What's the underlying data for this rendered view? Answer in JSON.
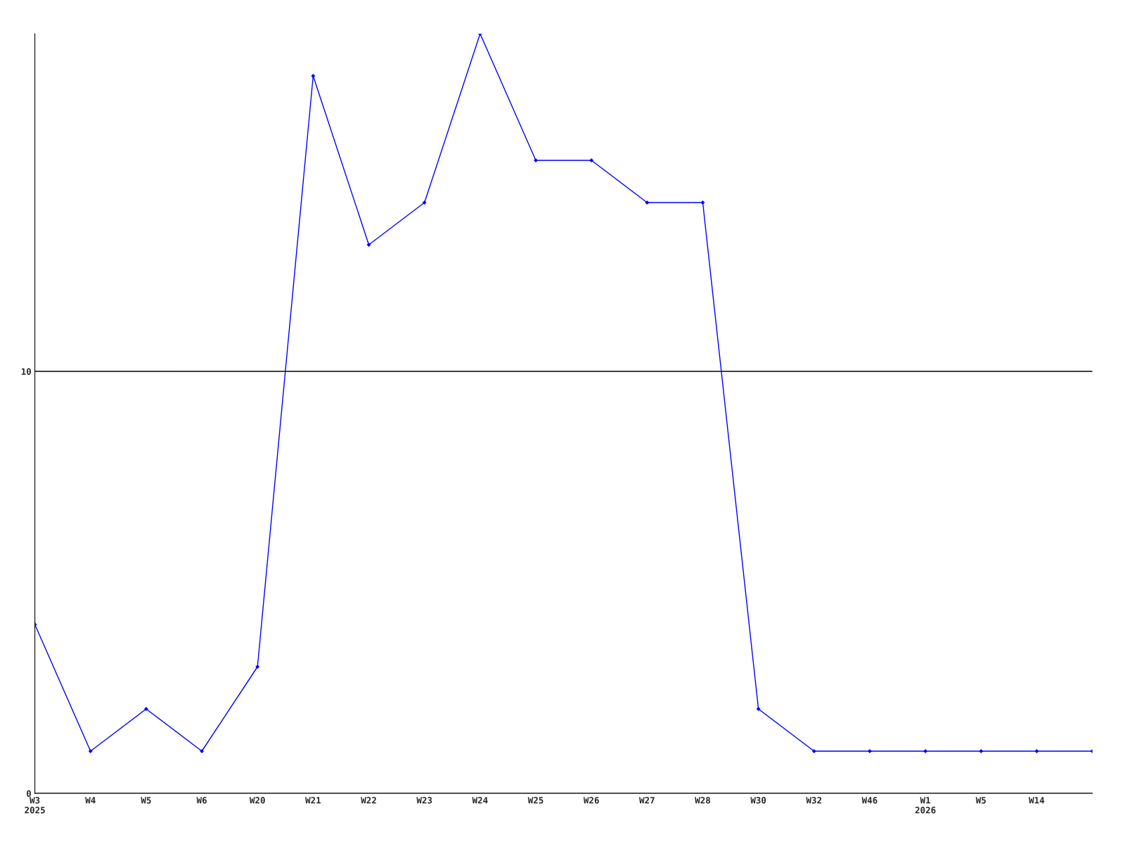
{
  "chart_data": {
    "type": "line",
    "categories": [
      "W3\n2025",
      "W4",
      "W5",
      "W6",
      "W20",
      "W21",
      "W22",
      "W23",
      "W24",
      "W25",
      "W26",
      "W27",
      "W28",
      "W30",
      "W32",
      "W46",
      "W1\n2026",
      "W5",
      "W14",
      null
    ],
    "series": [
      {
        "color": "#0000ff",
        "values": [
          4,
          1,
          2,
          1,
          3,
          17,
          13,
          14,
          18,
          15,
          15,
          14,
          14,
          2,
          1,
          1,
          1,
          1,
          1,
          1
        ]
      }
    ],
    "ylim": [
      0,
      18
    ],
    "yticks": [
      0,
      10
    ],
    "grid": "y",
    "marker": "diamond",
    "line_style": "solid"
  }
}
